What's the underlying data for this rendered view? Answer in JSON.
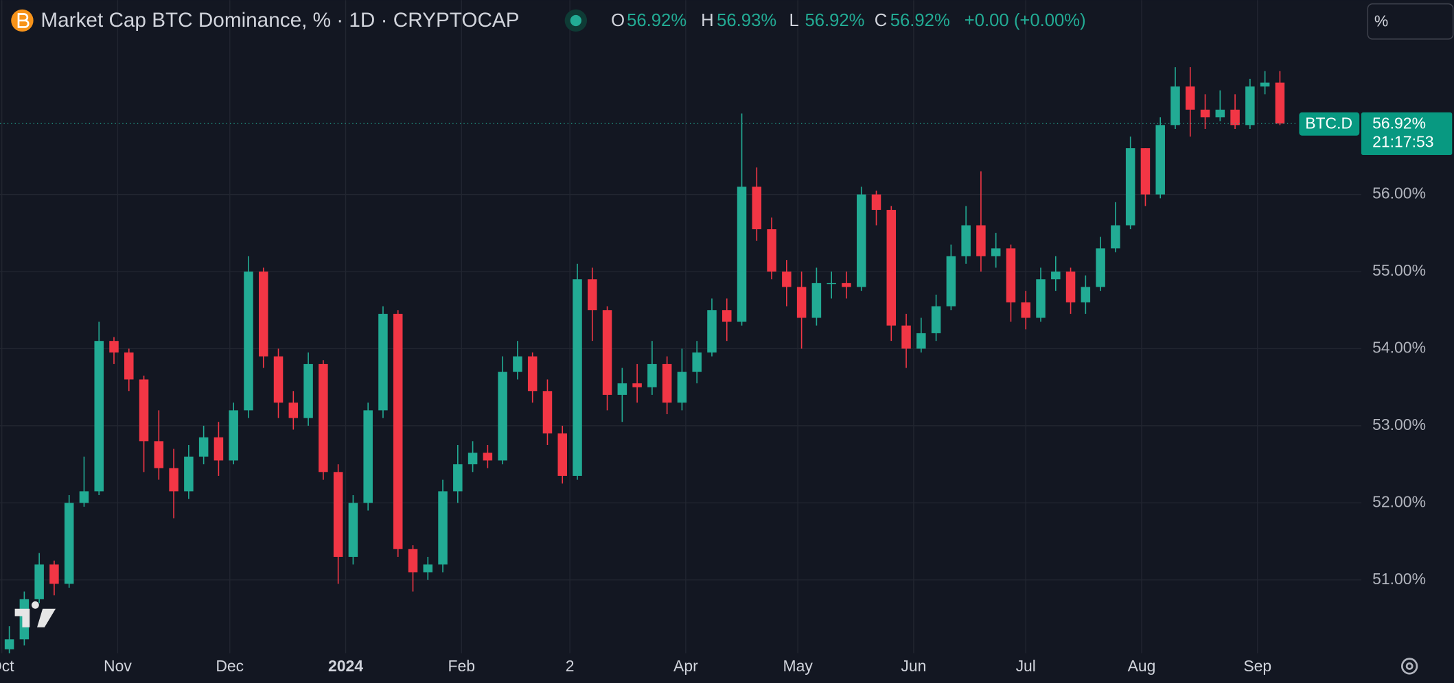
{
  "chart_data": {
    "type": "candlestick",
    "title": "Market Cap BTC Dominance, % · 1D · CRYPTOCAP",
    "legend": [
      {
        "key": "O",
        "value": 56.92,
        "label": "56.92%"
      },
      {
        "key": "H",
        "value": 56.93,
        "label": "56.93%"
      },
      {
        "key": "L",
        "value": 56.92,
        "label": "56.92%"
      },
      {
        "key": "C",
        "value": 56.92,
        "label": "56.92%"
      }
    ],
    "change": {
      "value": 0,
      "label": "+0.00 (+0.00%)"
    },
    "scale_mode": "%",
    "up_color": "#22ab94",
    "down_color": "#f23645",
    "grid": true,
    "x": [
      "2023-10-01",
      "2023-10-05",
      "2023-10-09",
      "2023-10-13",
      "2023-10-17",
      "2023-10-21",
      "2023-10-25",
      "2023-10-29",
      "2023-11-02",
      "2023-11-06",
      "2023-11-10",
      "2023-11-14",
      "2023-11-18",
      "2023-11-22",
      "2023-11-26",
      "2023-11-30",
      "2023-12-04",
      "2023-12-08",
      "2023-12-12",
      "2023-12-16",
      "2023-12-20",
      "2023-12-24",
      "2023-12-28",
      "2024-01-01",
      "2024-01-05",
      "2024-01-09",
      "2024-01-13",
      "2024-01-17",
      "2024-01-21",
      "2024-01-25",
      "2024-01-29",
      "2024-02-02",
      "2024-02-06",
      "2024-02-10",
      "2024-02-14",
      "2024-02-18",
      "2024-02-22",
      "2024-02-26",
      "2024-03-01",
      "2024-03-05",
      "2024-03-09",
      "2024-03-13",
      "2024-03-17",
      "2024-03-21",
      "2024-03-25",
      "2024-03-29",
      "2024-04-02",
      "2024-04-06",
      "2024-04-10",
      "2024-04-14",
      "2024-04-18",
      "2024-04-22",
      "2024-04-26",
      "2024-04-30",
      "2024-05-04",
      "2024-05-08",
      "2024-05-12",
      "2024-05-16",
      "2024-05-20",
      "2024-05-24",
      "2024-05-28",
      "2024-06-01",
      "2024-06-05",
      "2024-06-09",
      "2024-06-13",
      "2024-06-17",
      "2024-06-21",
      "2024-06-25",
      "2024-06-29",
      "2024-07-03",
      "2024-07-07",
      "2024-07-11",
      "2024-07-15",
      "2024-07-19",
      "2024-07-23",
      "2024-07-27",
      "2024-07-31",
      "2024-08-04",
      "2024-08-08",
      "2024-08-12",
      "2024-08-16",
      "2024-08-20",
      "2024-08-24",
      "2024-08-28",
      "2024-09-01",
      "2024-09-05"
    ],
    "open": [
      50.1,
      50.23,
      50.75,
      51.2,
      50.95,
      52.0,
      52.15,
      54.1,
      53.95,
      53.6,
      52.8,
      52.45,
      52.15,
      52.6,
      52.85,
      52.55,
      53.2,
      55.0,
      53.9,
      53.3,
      53.1,
      53.8,
      52.4,
      51.3,
      52.0,
      53.2,
      54.45,
      51.4,
      51.1,
      51.2,
      52.15,
      52.5,
      52.65,
      52.55,
      53.7,
      53.9,
      53.45,
      52.9,
      52.35,
      54.9,
      54.5,
      53.4,
      53.55,
      53.5,
      53.8,
      53.3,
      53.7,
      53.95,
      54.5,
      54.35,
      56.1,
      55.55,
      55.0,
      54.8,
      54.4,
      54.85,
      54.85,
      54.8,
      56.0,
      55.8,
      54.3,
      54.0,
      54.2,
      54.55,
      55.2,
      55.6,
      55.2,
      55.3,
      54.6,
      54.4,
      54.9,
      55.0,
      54.6,
      54.8,
      55.3,
      55.6,
      56.6,
      56.0,
      56.9,
      57.4,
      57.1,
      57.0,
      57.1,
      56.9,
      57.4,
      57.45
    ],
    "high": [
      50.4,
      50.85,
      51.35,
      51.25,
      52.1,
      52.6,
      54.35,
      54.15,
      54.0,
      53.65,
      53.2,
      52.7,
      52.75,
      53.0,
      53.05,
      53.3,
      55.2,
      55.05,
      54.0,
      53.45,
      53.95,
      53.85,
      52.5,
      52.1,
      53.3,
      54.55,
      54.5,
      51.45,
      51.3,
      52.3,
      52.75,
      52.8,
      52.75,
      53.9,
      54.1,
      53.95,
      53.6,
      53.0,
      55.1,
      55.05,
      54.55,
      53.75,
      53.8,
      54.1,
      53.9,
      54.0,
      54.1,
      54.65,
      54.65,
      57.05,
      56.35,
      55.7,
      55.15,
      55.0,
      55.05,
      55.0,
      55.0,
      56.1,
      56.05,
      55.85,
      54.45,
      54.4,
      54.7,
      55.35,
      55.85,
      56.3,
      55.5,
      55.35,
      54.75,
      55.05,
      55.2,
      55.05,
      54.95,
      55.45,
      55.9,
      56.75,
      56.6,
      57.0,
      57.65,
      57.65,
      57.3,
      57.35,
      57.3,
      57.5,
      57.6,
      57.6
    ],
    "low": [
      50.05,
      50.15,
      50.7,
      50.8,
      50.9,
      51.95,
      52.1,
      53.8,
      53.45,
      52.4,
      52.3,
      51.8,
      52.05,
      52.5,
      52.35,
      52.5,
      53.1,
      53.75,
      53.1,
      52.95,
      53.0,
      52.3,
      50.95,
      51.2,
      51.9,
      53.1,
      51.3,
      50.85,
      51.0,
      51.1,
      52.0,
      52.4,
      52.45,
      52.5,
      53.6,
      53.3,
      52.75,
      52.25,
      52.3,
      54.1,
      53.2,
      53.05,
      53.3,
      53.4,
      53.15,
      53.2,
      53.55,
      53.9,
      54.1,
      54.3,
      55.4,
      54.9,
      54.55,
      54.0,
      54.3,
      54.65,
      54.65,
      54.75,
      55.6,
      54.1,
      53.75,
      53.95,
      54.1,
      54.5,
      55.1,
      55.0,
      55.05,
      54.35,
      54.25,
      54.35,
      54.75,
      54.45,
      54.45,
      54.75,
      55.25,
      55.55,
      55.85,
      55.95,
      56.85,
      56.75,
      56.85,
      56.95,
      56.85,
      56.85,
      57.3,
      56.9
    ],
    "close": [
      50.23,
      50.75,
      51.2,
      50.95,
      52.0,
      52.15,
      54.1,
      53.95,
      53.6,
      52.8,
      52.45,
      52.15,
      52.6,
      52.85,
      52.55,
      53.2,
      55.0,
      53.9,
      53.3,
      53.1,
      53.8,
      52.4,
      51.3,
      52.0,
      53.2,
      54.45,
      51.4,
      51.1,
      51.2,
      52.15,
      52.5,
      52.65,
      52.55,
      53.7,
      53.9,
      53.45,
      52.9,
      52.35,
      54.9,
      54.5,
      53.4,
      53.55,
      53.5,
      53.8,
      53.3,
      53.7,
      53.95,
      54.5,
      54.35,
      56.1,
      55.55,
      55.0,
      54.8,
      54.4,
      54.85,
      54.85,
      54.8,
      56.0,
      55.8,
      54.3,
      54.0,
      54.2,
      54.55,
      55.2,
      55.6,
      55.2,
      55.3,
      54.6,
      54.4,
      54.9,
      55.0,
      54.6,
      54.8,
      55.3,
      55.6,
      56.6,
      56.0,
      56.9,
      57.4,
      57.1,
      57.0,
      57.1,
      56.9,
      57.4,
      57.45,
      56.92
    ],
    "xlim": [
      "2023-10-01",
      "2024-09-28"
    ],
    "xticks": [
      {
        "value": "2023-10-01",
        "label": "Oct"
      },
      {
        "value": "2023-11-01",
        "label": "Nov"
      },
      {
        "value": "2023-12-01",
        "label": "Dec"
      },
      {
        "value": "2024-01-01",
        "label": "2024"
      },
      {
        "value": "2024-02-01",
        "label": "Feb"
      },
      {
        "value": "2024-03-01",
        "label": "2"
      },
      {
        "value": "2024-04-01",
        "label": "Apr"
      },
      {
        "value": "2024-05-01",
        "label": "May"
      },
      {
        "value": "2024-06-01",
        "label": "Jun"
      },
      {
        "value": "2024-07-01",
        "label": "Jul"
      },
      {
        "value": "2024-08-01",
        "label": "Aug"
      },
      {
        "value": "2024-09-01",
        "label": "Sep"
      }
    ],
    "ylim": [
      50.05,
      58.52
    ],
    "yticks": [
      {
        "value": 51,
        "label": "51.00%"
      },
      {
        "value": 52,
        "label": "52.00%"
      },
      {
        "value": 53,
        "label": "53.00%"
      },
      {
        "value": 54,
        "label": "54.00%"
      },
      {
        "value": 55,
        "label": "55.00%"
      },
      {
        "value": 56,
        "label": "56.00%"
      }
    ],
    "price_line": {
      "name": "BTC.D",
      "value": 56.92,
      "label": "56.92%",
      "countdown": "21:17:53"
    }
  }
}
